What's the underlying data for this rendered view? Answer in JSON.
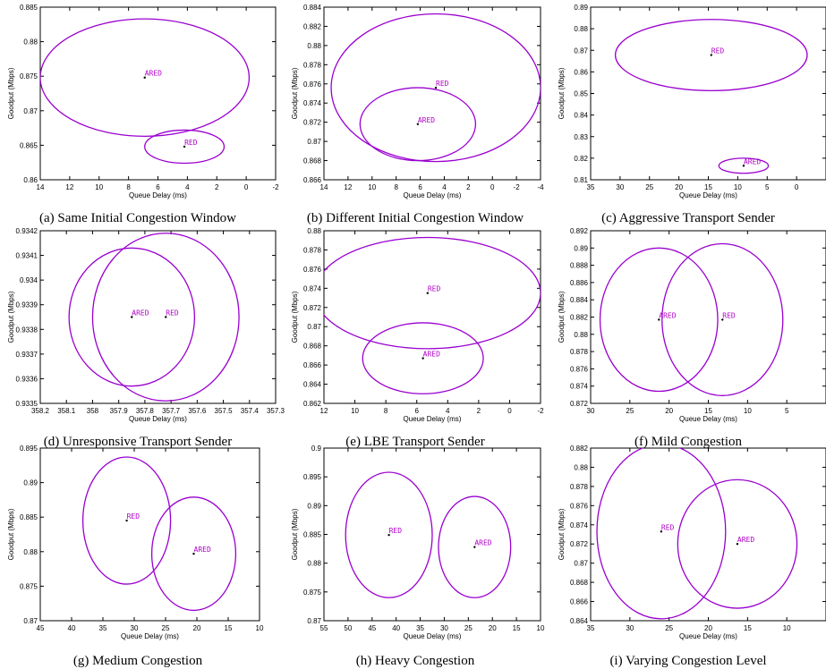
{
  "chart_data": [
    {
      "type": "scatter",
      "caption": "(a) Same Initial Congestion Window",
      "xlabel": "Queue Delay (ms)",
      "ylabel": "Goodput (Mbps)",
      "xlim": [
        14,
        -2
      ],
      "ylim": [
        0.86,
        0.885
      ],
      "xticks": [
        "14",
        "12",
        "10",
        "8",
        "6",
        "4",
        "2",
        "0",
        "-2"
      ],
      "yticks": [
        "0.86",
        "0.865",
        "0.87",
        "0.875",
        "0.88",
        "0.885"
      ],
      "series": [
        {
          "name": "ARED",
          "x": 6.9,
          "y": 0.8748,
          "rx": 7.1,
          "ry": 0.0085
        },
        {
          "name": "RED",
          "x": 4.2,
          "y": 0.8648,
          "rx": 2.7,
          "ry": 0.0024
        }
      ],
      "color": "#9a00d0"
    },
    {
      "type": "scatter",
      "caption": "(b) Different Initial Congestion Window",
      "xlabel": "Queue Delay (ms)",
      "ylabel": "Goodput (Mbps)",
      "xlim": [
        14,
        -4
      ],
      "ylim": [
        0.866,
        0.884
      ],
      "xticks": [
        "14",
        "12",
        "10",
        "8",
        "6",
        "4",
        "2",
        "0",
        "-2",
        "-4"
      ],
      "yticks": [
        "0.866",
        "0.868",
        "0.87",
        "0.872",
        "0.874",
        "0.876",
        "0.878",
        "0.88",
        "0.882",
        "0.884"
      ],
      "series": [
        {
          "name": "RED",
          "x": 4.7,
          "y": 0.8756,
          "rx": 8.7,
          "ry": 0.0077
        },
        {
          "name": "ARED",
          "x": 6.2,
          "y": 0.8718,
          "rx": 4.8,
          "ry": 0.0038
        }
      ],
      "color": "#9a00d0"
    },
    {
      "type": "scatter",
      "caption": "(c) Aggressive Transport Sender",
      "xlabel": "Queue Delay (ms)",
      "ylabel": "Goodput (Mbps)",
      "xlim": [
        35,
        -5
      ],
      "ylim": [
        0.81,
        0.89
      ],
      "xticks": [
        "35",
        "30",
        "25",
        "20",
        "15",
        "10",
        "5",
        "0"
      ],
      "yticks": [
        "0.81",
        "0.82",
        "0.83",
        "0.84",
        "0.85",
        "0.86",
        "0.87",
        "0.88",
        "0.89"
      ],
      "series": [
        {
          "name": "RED",
          "x": 14.5,
          "y": 0.8678,
          "rx": 16.3,
          "ry": 0.0165
        },
        {
          "name": "ARED",
          "x": 9.0,
          "y": 0.8165,
          "rx": 4.2,
          "ry": 0.0035
        }
      ],
      "color": "#9a00d0"
    },
    {
      "type": "scatter",
      "caption": "(d) Unresponsive Transport Sender",
      "xlabel": "Queue Delay (ms)",
      "ylabel": "Goodput (Mbps)",
      "xlim": [
        358.2,
        357.3
      ],
      "ylim": [
        0.9335,
        0.9342
      ],
      "xticks": [
        "358.2",
        "358.1",
        "358",
        "357.9",
        "357.8",
        "357.7",
        "357.6",
        "357.5",
        "357.4",
        "357.3"
      ],
      "yticks": [
        "0.9335",
        "0.9336",
        "0.9337",
        "0.9338",
        "0.9339",
        "0.934",
        "0.9341",
        "0.9342"
      ],
      "series": [
        {
          "name": "ARED",
          "x": 357.85,
          "y": 0.93385,
          "rx": 0.24,
          "ry": 0.00028
        },
        {
          "name": "RED",
          "x": 357.72,
          "y": 0.93385,
          "rx": 0.28,
          "ry": 0.00034
        }
      ],
      "color": "#9a00d0"
    },
    {
      "type": "scatter",
      "caption": "(e) LBE Transport Sender",
      "xlabel": "Queue Delay (ms)",
      "ylabel": "Goodput (Mbps)",
      "xlim": [
        12,
        -2
      ],
      "ylim": [
        0.862,
        0.88
      ],
      "xticks": [
        "12",
        "10",
        "8",
        "6",
        "4",
        "2",
        "0",
        "-2"
      ],
      "yticks": [
        "0.862",
        "0.864",
        "0.866",
        "0.868",
        "0.87",
        "0.872",
        "0.874",
        "0.876",
        "0.878",
        "0.88"
      ],
      "series": [
        {
          "name": "RED",
          "x": 5.3,
          "y": 0.8735,
          "rx": 7.3,
          "ry": 0.0058
        },
        {
          "name": "ARED",
          "x": 5.6,
          "y": 0.8667,
          "rx": 3.9,
          "ry": 0.0037
        }
      ],
      "color": "#9a00d0"
    },
    {
      "type": "scatter",
      "caption": "(f) Mild Congestion",
      "xlabel": "Queue Delay (ms)",
      "ylabel": "Goodput (Mbps)",
      "xlim": [
        30,
        0
      ],
      "ylim": [
        0.872,
        0.892
      ],
      "xticks": [
        "30",
        "25",
        "20",
        "15",
        "10",
        "5"
      ],
      "yticks": [
        "0.872",
        "0.874",
        "0.876",
        "0.878",
        "0.88",
        "0.882",
        "0.884",
        "0.886",
        "0.888",
        "0.89",
        "0.892"
      ],
      "series": [
        {
          "name": "ARED",
          "x": 21.3,
          "y": 0.8817,
          "rx": 7.5,
          "ry": 0.0083
        },
        {
          "name": "RED",
          "x": 13.2,
          "y": 0.8817,
          "rx": 7.7,
          "ry": 0.0088
        }
      ],
      "color": "#9a00d0"
    },
    {
      "type": "scatter",
      "caption": "(g) Medium Congestion",
      "xlabel": "Queue Delay (ms)",
      "ylabel": "Goodput (Mbps)",
      "xlim": [
        45,
        10
      ],
      "ylim": [
        0.87,
        0.895
      ],
      "xticks": [
        "45",
        "40",
        "35",
        "30",
        "25",
        "20",
        "15",
        "10"
      ],
      "yticks": [
        "0.87",
        "0.875",
        "0.88",
        "0.885",
        "0.89",
        "0.895"
      ],
      "series": [
        {
          "name": "RED",
          "x": 31.2,
          "y": 0.8845,
          "rx": 7.0,
          "ry": 0.0092
        },
        {
          "name": "ARED",
          "x": 20.5,
          "y": 0.8797,
          "rx": 6.7,
          "ry": 0.0082
        }
      ],
      "color": "#9a00d0"
    },
    {
      "type": "scatter",
      "caption": "(h) Heavy Congestion",
      "xlabel": "Queue Delay (ms)",
      "ylabel": "Goodput (Mbps)",
      "xlim": [
        55,
        10
      ],
      "ylim": [
        0.87,
        0.9
      ],
      "xticks": [
        "55",
        "50",
        "45",
        "40",
        "35",
        "30",
        "25",
        "20",
        "15",
        "10"
      ],
      "yticks": [
        "0.87",
        "0.875",
        "0.88",
        "0.885",
        "0.89",
        "0.895",
        "0.9"
      ],
      "series": [
        {
          "name": "RED",
          "x": 41.5,
          "y": 0.8849,
          "rx": 9.0,
          "ry": 0.0109
        },
        {
          "name": "ARED",
          "x": 23.7,
          "y": 0.8828,
          "rx": 7.5,
          "ry": 0.0088
        }
      ],
      "color": "#9a00d0"
    },
    {
      "type": "scatter",
      "caption": "(i) Varying Congestion Level",
      "xlabel": "Queue Delay (ms)",
      "ylabel": "Goodput (Mbps)",
      "xlim": [
        35,
        5
      ],
      "ylim": [
        0.864,
        0.882
      ],
      "xticks": [
        "35",
        "30",
        "25",
        "20",
        "15",
        "10"
      ],
      "yticks": [
        "0.864",
        "0.866",
        "0.868",
        "0.87",
        "0.872",
        "0.874",
        "0.876",
        "0.878",
        "0.88",
        "0.882"
      ],
      "series": [
        {
          "name": "RED",
          "x": 26.0,
          "y": 0.8733,
          "rx": 8.2,
          "ry": 0.0091
        },
        {
          "name": "ARED",
          "x": 16.3,
          "y": 0.872,
          "rx": 7.6,
          "ry": 0.0067
        }
      ],
      "color": "#9a00d0"
    }
  ]
}
